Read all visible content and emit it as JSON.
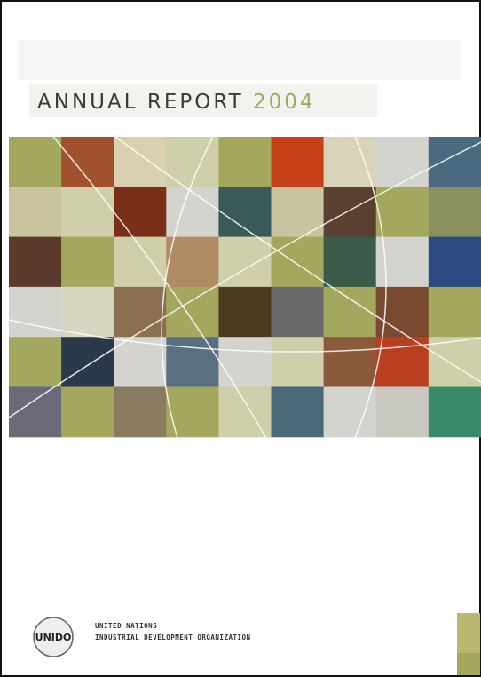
{
  "header": {
    "title": "ANNUAL REPORT",
    "year": "2004"
  },
  "footer": {
    "logo": "UNIDO",
    "line1": "UNITED NATIONS",
    "line2": "INDUSTRIAL DEVELOPMENT ORGANIZATION"
  }
}
